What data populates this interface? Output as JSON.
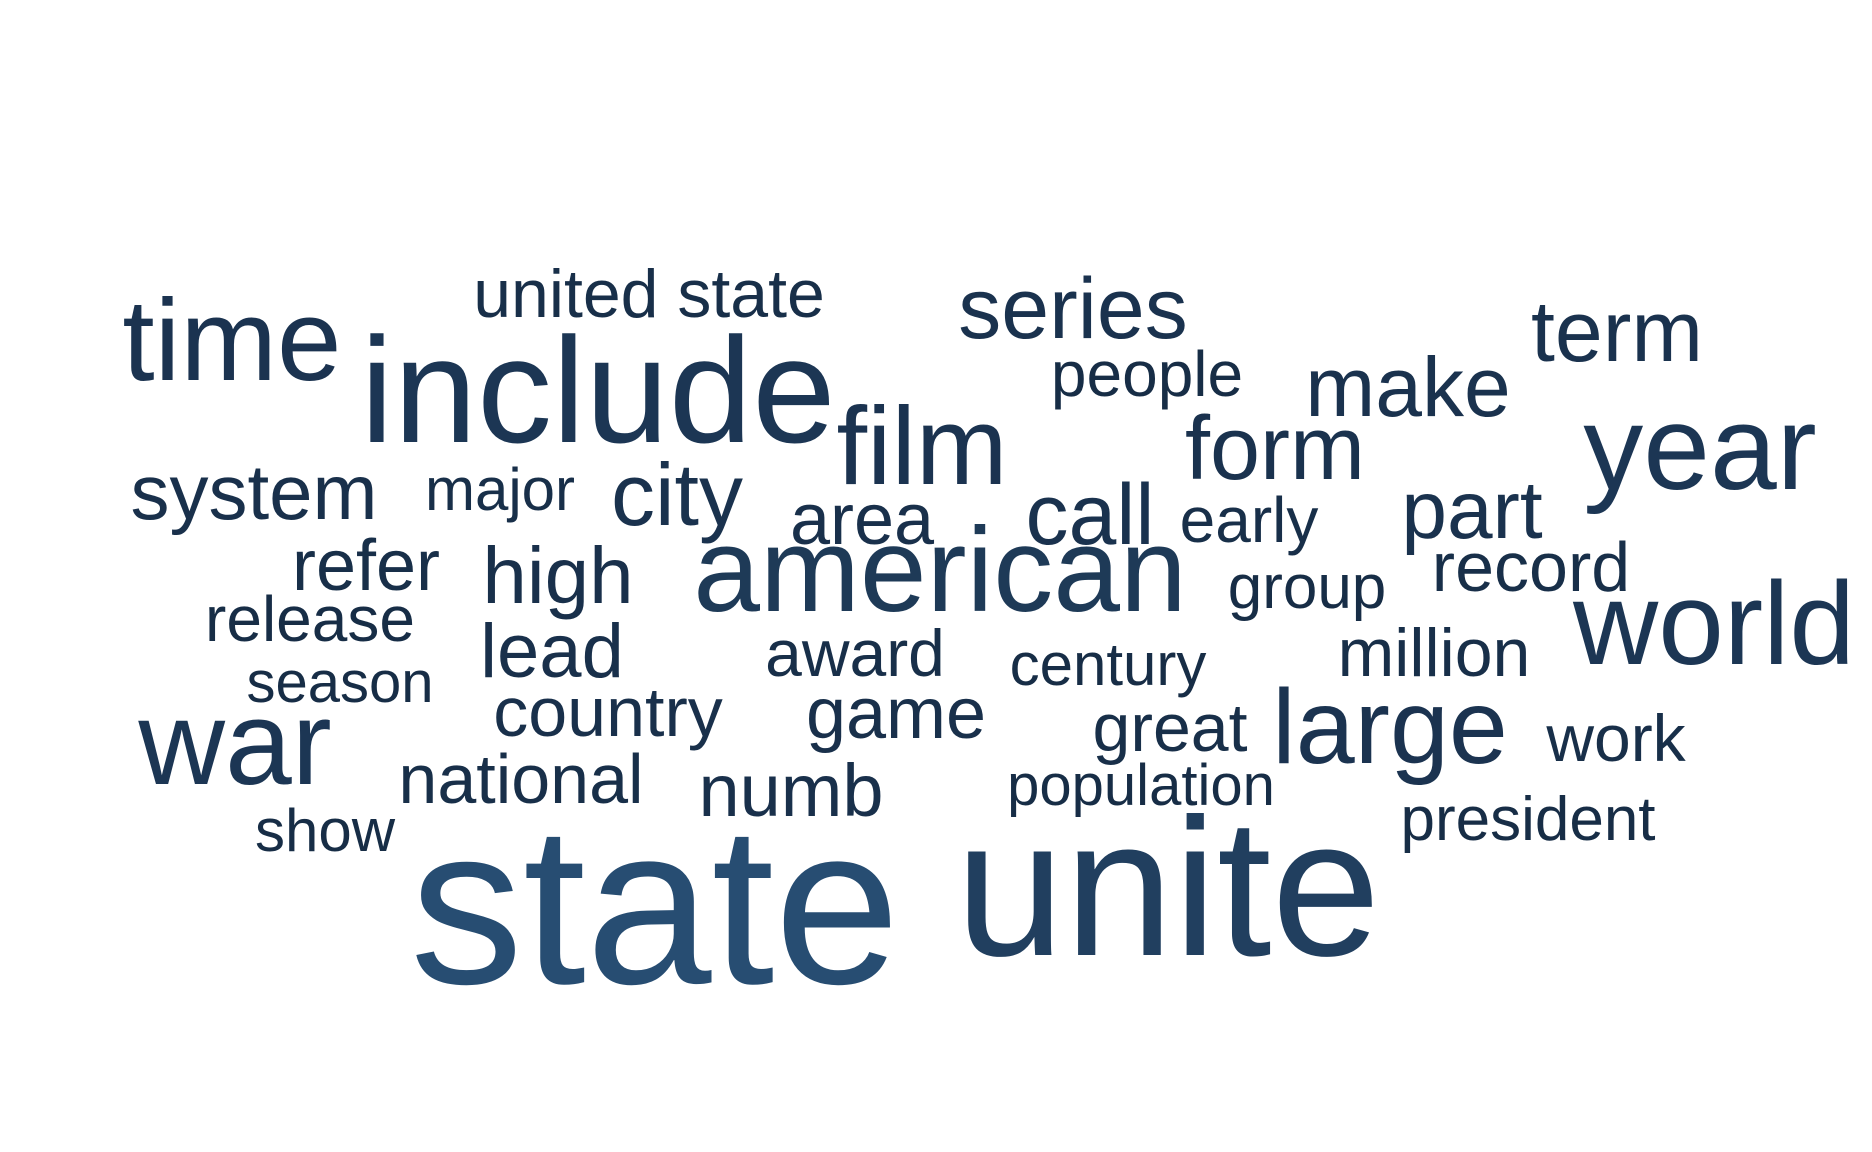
{
  "chart_data": {
    "type": "wordcloud",
    "words": [
      {
        "text": "state",
        "weight": 100,
        "color": "#274d72"
      },
      {
        "text": "unite",
        "weight": 94,
        "color": "#213f5f"
      },
      {
        "text": "american",
        "weight": 70,
        "color": "#1e3a57"
      },
      {
        "text": "include",
        "weight": 78,
        "color": "#1c3654"
      },
      {
        "text": "year",
        "weight": 66,
        "color": "#1c3654"
      },
      {
        "text": "world",
        "weight": 62,
        "color": "#1c3654"
      },
      {
        "text": "war",
        "weight": 60,
        "color": "#1c3654"
      },
      {
        "text": "time",
        "weight": 58,
        "color": "#1b3350"
      },
      {
        "text": "large",
        "weight": 56,
        "color": "#1b3350"
      },
      {
        "text": "film",
        "weight": 54,
        "color": "#1b3350"
      },
      {
        "text": "series",
        "weight": 50,
        "color": "#1a324e"
      },
      {
        "text": "make",
        "weight": 50,
        "color": "#1a324e"
      },
      {
        "text": "form",
        "weight": 50,
        "color": "#1a324e"
      },
      {
        "text": "city",
        "weight": 50,
        "color": "#1a324e"
      },
      {
        "text": "term",
        "weight": 48,
        "color": "#1a324e"
      },
      {
        "text": "call",
        "weight": 48,
        "color": "#1a324e"
      },
      {
        "text": "part",
        "weight": 48,
        "color": "#1a324e"
      },
      {
        "text": "area",
        "weight": 46,
        "color": "#19304b"
      },
      {
        "text": "system",
        "weight": 46,
        "color": "#19304b"
      },
      {
        "text": "numb",
        "weight": 46,
        "color": "#19304b"
      },
      {
        "text": "high",
        "weight": 44,
        "color": "#19304b"
      },
      {
        "text": "game",
        "weight": 44,
        "color": "#19304b"
      },
      {
        "text": "country",
        "weight": 44,
        "color": "#19304b"
      },
      {
        "text": "lead",
        "weight": 43,
        "color": "#19304b"
      },
      {
        "text": "refer",
        "weight": 42,
        "color": "#182f49"
      },
      {
        "text": "national",
        "weight": 42,
        "color": "#182f49"
      },
      {
        "text": "early",
        "weight": 42,
        "color": "#182f49"
      },
      {
        "text": "great",
        "weight": 42,
        "color": "#182f49"
      },
      {
        "text": "million",
        "weight": 42,
        "color": "#182f49"
      },
      {
        "text": "record",
        "weight": 41,
        "color": "#182f49"
      },
      {
        "text": "work",
        "weight": 40,
        "color": "#182f49"
      },
      {
        "text": "united state",
        "weight": 40,
        "color": "#182f49"
      },
      {
        "text": "award",
        "weight": 40,
        "color": "#182f49"
      },
      {
        "text": "major",
        "weight": 40,
        "color": "#182f49"
      },
      {
        "text": "people",
        "weight": 39,
        "color": "#172d46"
      },
      {
        "text": "release",
        "weight": 39,
        "color": "#172d46"
      },
      {
        "text": "group",
        "weight": 38,
        "color": "#172d46"
      },
      {
        "text": "century",
        "weight": 38,
        "color": "#172d46"
      },
      {
        "text": "president",
        "weight": 38,
        "color": "#172d46"
      },
      {
        "text": "population",
        "weight": 37,
        "color": "#172d46"
      },
      {
        "text": "season",
        "weight": 37,
        "color": "#172d46"
      },
      {
        "text": "show",
        "weight": 36,
        "color": "#172d46"
      }
    ]
  }
}
